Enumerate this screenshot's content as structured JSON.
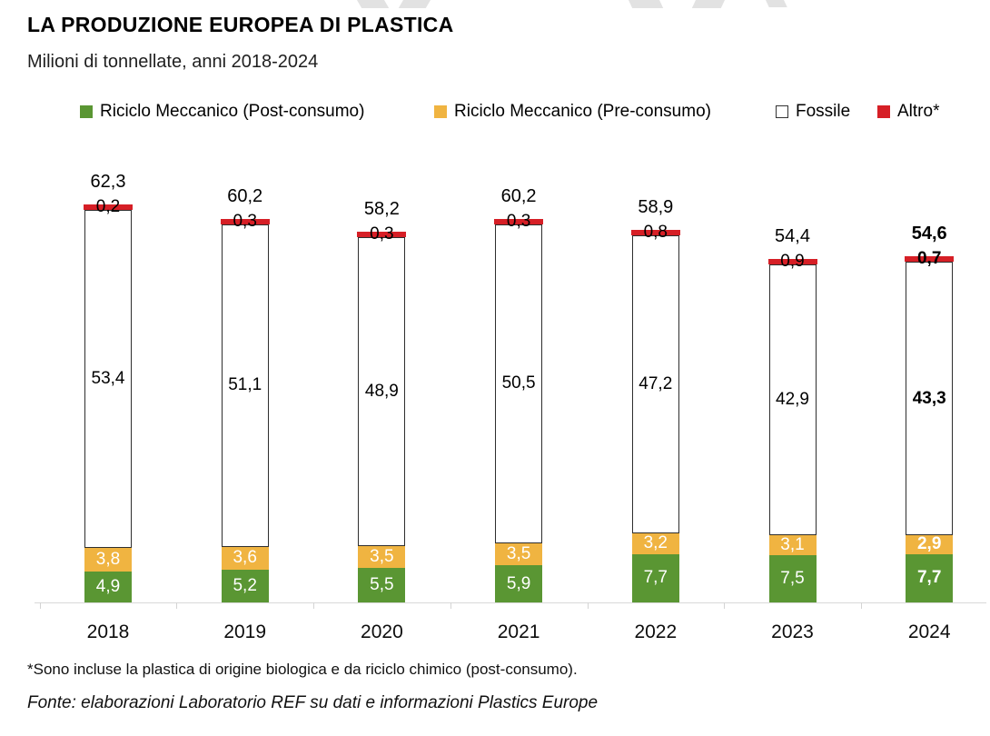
{
  "title": "LA PRODUZIONE EUROPEA DI PLASTICA",
  "subtitle": "Milioni di tonnellate, anni 2018-2024",
  "legend": [
    {
      "label": "Riciclo Meccanico (Post-consumo)",
      "color": "#5a9633",
      "swatch": "filled"
    },
    {
      "label": "Riciclo Meccanico (Pre-consumo)",
      "color": "#f0b441",
      "swatch": "filled"
    },
    {
      "label": "Fossile",
      "color": "#ffffff",
      "swatch": "outlined"
    },
    {
      "label": "Altro*",
      "color": "#d61f26",
      "swatch": "filled"
    }
  ],
  "chart_data": {
    "type": "bar",
    "stacked": true,
    "title": "LA PRODUZIONE EUROPEA DI PLASTICA",
    "subtitle": "Milioni di tonnellate, anni 2018-2024",
    "unit": "Milioni di tonnellate",
    "categories": [
      "2018",
      "2019",
      "2020",
      "2021",
      "2022",
      "2023",
      "2024"
    ],
    "series": [
      {
        "name": "Riciclo Meccanico (Post-consumo)",
        "color": "#5a9633",
        "values": [
          4.9,
          5.2,
          5.5,
          5.9,
          7.7,
          7.5,
          7.7
        ],
        "labels": [
          "4,9",
          "5,2",
          "5,5",
          "5,9",
          "7,7",
          "7,5",
          "7,7"
        ]
      },
      {
        "name": "Riciclo Meccanico (Pre-consumo)",
        "color": "#f0b441",
        "values": [
          3.8,
          3.6,
          3.5,
          3.5,
          3.2,
          3.1,
          2.9
        ],
        "labels": [
          "3,8",
          "3,6",
          "3,5",
          "3,5",
          "3,2",
          "3,1",
          "2,9"
        ]
      },
      {
        "name": "Fossile",
        "color": "#ffffff",
        "values": [
          53.4,
          51.1,
          48.9,
          50.5,
          47.2,
          42.9,
          43.3
        ],
        "labels": [
          "53,4",
          "51,1",
          "48,9",
          "50,5",
          "47,2",
          "42,9",
          "43,3"
        ]
      },
      {
        "name": "Altro*",
        "color": "#d61f26",
        "values": [
          0.2,
          0.3,
          0.3,
          0.3,
          0.8,
          0.9,
          0.7
        ],
        "labels": [
          "0,2",
          "0,3",
          "0,3",
          "0,3",
          "0,8",
          "0,9",
          "0,7"
        ]
      }
    ],
    "totals": [
      62.3,
      60.2,
      58.2,
      60.2,
      58.9,
      54.4,
      54.6
    ],
    "total_labels": [
      "62,3",
      "60,2",
      "58,2",
      "60,2",
      "58,9",
      "54,4",
      "54,6"
    ],
    "bold_last_category": true,
    "legend_position": "top",
    "grid": false,
    "ylim": [
      0,
      65
    ]
  },
  "footnote": "*Sono incluse la plastica di origine biologica e da riciclo chimico (post-consumo).",
  "source": "Fonte: elaborazioni Laboratorio REF su dati e informazioni Plastics Europe"
}
